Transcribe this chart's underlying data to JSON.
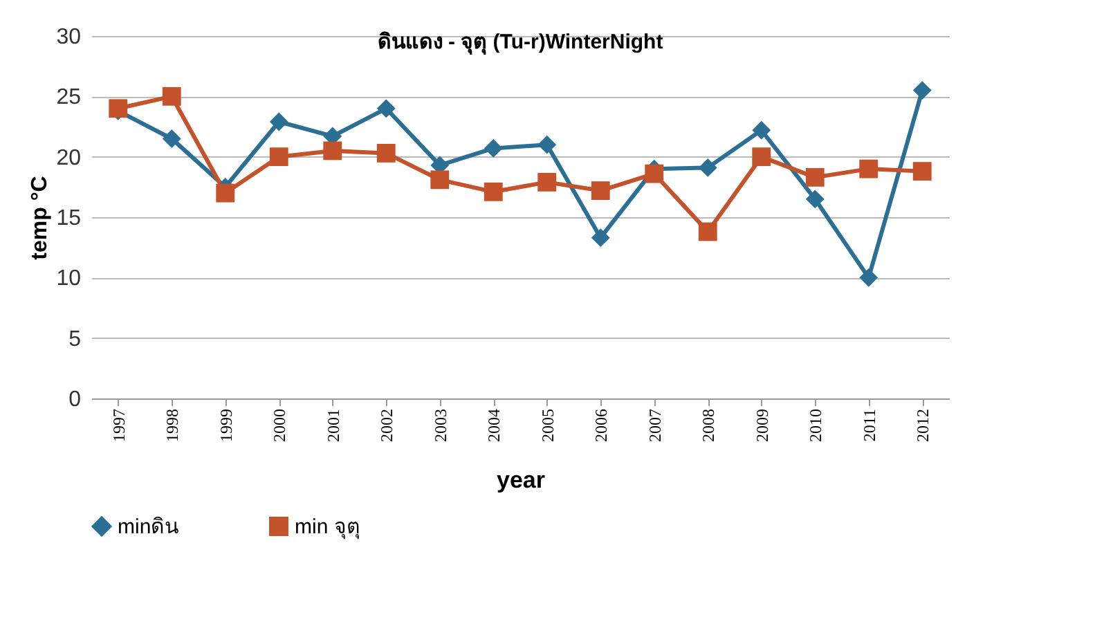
{
  "chart_data": {
    "type": "line",
    "title": "ดินแดง - จุตุ (Tu-r)WinterNight",
    "xlabel": "year",
    "ylabel": "temp °C",
    "categories": [
      "1997",
      "1998",
      "1999",
      "2000",
      "2001",
      "2002",
      "2003",
      "2004",
      "2005",
      "2006",
      "2007",
      "2008",
      "2009",
      "2010",
      "2011",
      "2012"
    ],
    "series": [
      {
        "name": "minดิน",
        "color": "#2c6f94",
        "marker": "diamond",
        "values": [
          23.8,
          21.5,
          17.5,
          22.9,
          21.7,
          24,
          19.3,
          20.7,
          21,
          13.3,
          19,
          19.1,
          22.2,
          16.5,
          10,
          25.5
        ]
      },
      {
        "name": "min จุตุ",
        "color": "#c4522b",
        "marker": "square",
        "values": [
          24,
          25,
          17,
          20,
          20.5,
          20.3,
          18.1,
          17.1,
          17.9,
          17.2,
          18.6,
          13.8,
          20,
          18.3,
          19,
          18.8
        ]
      }
    ],
    "ylim": [
      0,
      30
    ],
    "yticks": [
      0,
      5,
      10,
      15,
      20,
      25,
      30
    ],
    "grid": "y",
    "legend": "bottom",
    "line_style": "solid"
  }
}
